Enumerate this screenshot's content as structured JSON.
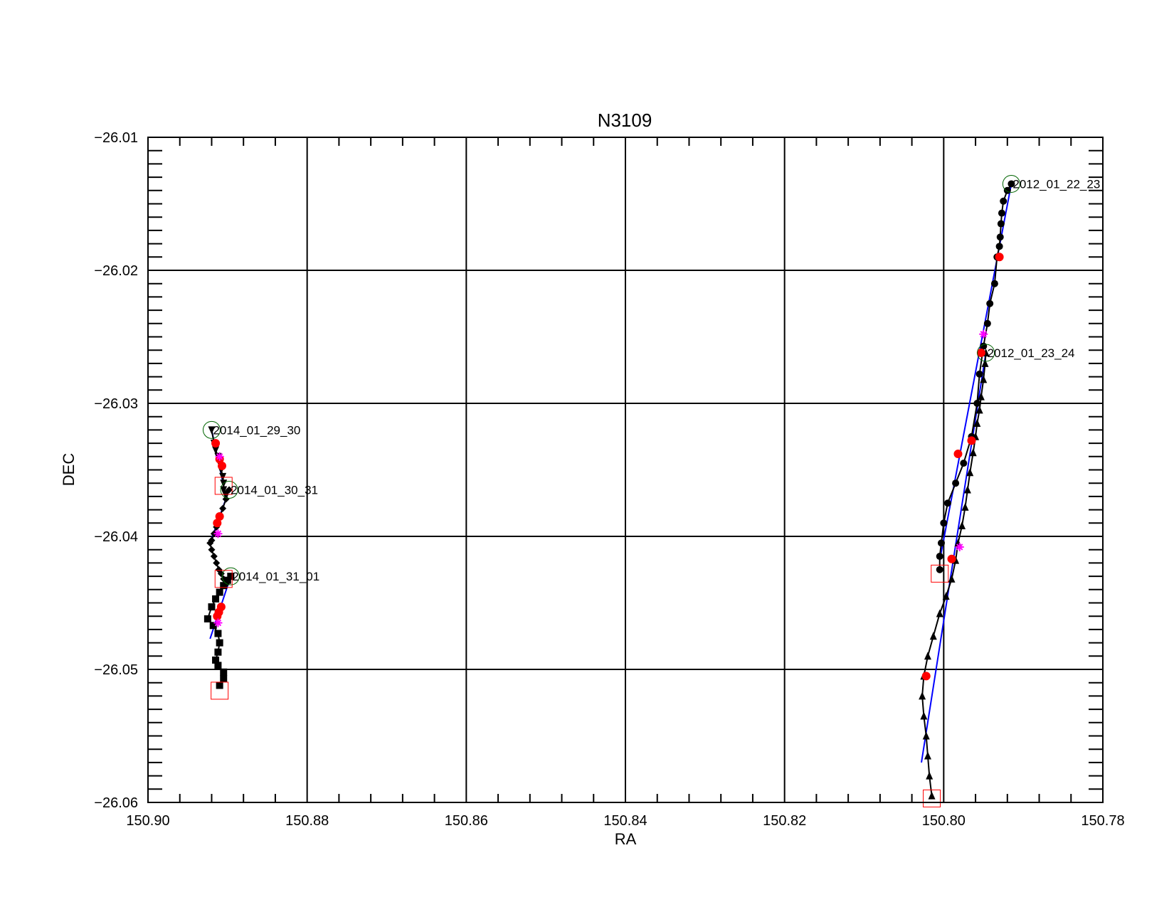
{
  "chart_data": {
    "type": "scatter",
    "title": "N3109",
    "xlabel": "RA",
    "ylabel": "DEC",
    "xlim": [
      150.9,
      150.78
    ],
    "ylim": [
      -26.06,
      -26.01
    ],
    "x_reversed": true,
    "grid": true,
    "x_ticks": [
      "150.90",
      "150.88",
      "150.86",
      "150.84",
      "150.82",
      "150.80",
      "150.78"
    ],
    "y_ticks": [
      "-26.01",
      "-26.02",
      "-26.03",
      "-26.04",
      "-26.05",
      "-26.06"
    ],
    "colors": {
      "points": "#000000",
      "fit": "#0000ff",
      "marked": "#ff0000",
      "star": "#ff00ff",
      "start": "#006400",
      "end": "#ff0000"
    },
    "series": [
      {
        "name": "2012_01_22_23",
        "marker": "circle",
        "x": [
          150.7915,
          150.792,
          150.7925,
          150.7927,
          150.7928,
          150.7929,
          150.793,
          150.7933,
          150.7936,
          150.7942,
          150.7945,
          150.795,
          150.7955,
          150.7958,
          150.7965,
          150.7975,
          150.7985,
          150.7995,
          150.8,
          150.8003,
          150.8005,
          150.8005
        ],
        "y": [
          -26.0135,
          -26.014,
          -26.0148,
          -26.0157,
          -26.0165,
          -26.0175,
          -26.0182,
          -26.019,
          -26.021,
          -26.0225,
          -26.024,
          -26.0257,
          -26.0278,
          -26.03,
          -26.0325,
          -26.0345,
          -26.036,
          -26.0375,
          -26.039,
          -26.0405,
          -26.0415,
          -26.0425
        ],
        "marked_x": [
          150.793,
          150.7953,
          150.7982
        ],
        "marked_y": [
          -26.019,
          -26.0262,
          -26.0338
        ],
        "star": [
          [
            150.795,
            -26.0248
          ]
        ],
        "fit": [
          [
            150.7915,
            -26.0135
          ],
          [
            150.8005,
            -26.0418
          ]
        ]
      },
      {
        "name": "2012_01_23_24",
        "marker": "triangle",
        "x": [
          150.7947,
          150.7948,
          150.795,
          150.7953,
          150.7955,
          150.7958,
          150.796,
          150.7963,
          150.7967,
          150.797,
          150.7973,
          150.7977,
          150.7982,
          150.7985,
          150.799,
          150.7997,
          150.8005,
          150.8013,
          150.802,
          150.8025,
          150.8027,
          150.8025,
          150.8022,
          150.802,
          150.8018,
          150.8015
        ],
        "y": [
          -26.0262,
          -26.027,
          -26.0282,
          -26.0295,
          -26.0305,
          -26.0315,
          -26.0325,
          -26.0337,
          -26.0352,
          -26.0365,
          -26.0378,
          -26.0392,
          -26.0405,
          -26.0418,
          -26.0432,
          -26.0445,
          -26.0458,
          -26.0475,
          -26.049,
          -26.0505,
          -26.052,
          -26.0535,
          -26.055,
          -26.0565,
          -26.058,
          -26.0595
        ],
        "marked_x": [
          150.7965,
          150.799,
          150.8022
        ],
        "marked_y": [
          -26.0328,
          -26.0417,
          -26.0505
        ],
        "star": [
          [
            150.798,
            -26.0408
          ]
        ],
        "fit": [
          [
            150.7947,
            -26.0262
          ],
          [
            150.8028,
            -26.057
          ]
        ]
      },
      {
        "name": "2014_01_29_30",
        "marker": "triangle-down",
        "x": [
          150.892,
          150.8917,
          150.8915,
          150.8912,
          150.891,
          150.8908,
          150.8906,
          150.8905,
          150.8905,
          150.8903
        ],
        "y": [
          -26.032,
          -26.033,
          -26.0335,
          -26.034,
          -26.0345,
          -26.035,
          -26.0355,
          -26.036,
          -26.0365,
          -26.0368
        ],
        "marked_x": [
          150.8915,
          150.891,
          150.8907
        ],
        "marked_y": [
          -26.033,
          -26.0342,
          -26.0347
        ],
        "star": [
          [
            150.891,
            -26.034
          ]
        ],
        "fit": [
          [
            150.892,
            -26.032
          ],
          [
            150.8905,
            -26.0362
          ]
        ]
      },
      {
        "name": "2014_01_30_31",
        "marker": "diamond",
        "x": [
          150.8898,
          150.8902,
          150.8906,
          150.891,
          150.8914,
          150.8917,
          150.892,
          150.8922,
          150.892,
          150.8917,
          150.8914,
          150.8911,
          150.8908,
          150.8905,
          150.8902
        ],
        "y": [
          -26.0365,
          -26.0372,
          -26.0379,
          -26.0386,
          -26.0393,
          -26.0398,
          -26.0403,
          -26.0405,
          -26.041,
          -26.0415,
          -26.042,
          -26.0425,
          -26.0428,
          -26.0432,
          -26.0436
        ],
        "marked_x": [
          150.891,
          150.8913
        ],
        "marked_y": [
          -26.0385,
          -26.039
        ],
        "star": [
          [
            150.8912,
            -26.0398
          ]
        ],
        "fit": [
          [
            150.8898,
            -26.0365
          ],
          [
            150.8922,
            -26.0405
          ]
        ]
      },
      {
        "name": "2014_01_31_01",
        "marker": "square",
        "x": [
          150.8896,
          150.89,
          150.8905,
          150.891,
          150.8915,
          150.892,
          150.8925,
          150.8918,
          150.8912,
          150.891,
          150.8912,
          150.8915,
          150.8912,
          150.8905,
          150.8905,
          150.891
        ],
        "y": [
          -26.043,
          -26.0433,
          -26.0437,
          -26.0442,
          -26.0447,
          -26.0453,
          -26.0462,
          -26.0467,
          -26.0473,
          -26.048,
          -26.0487,
          -26.0493,
          -26.0497,
          -26.0502,
          -26.0507,
          -26.0512
        ],
        "marked_x": [
          150.8908,
          150.8911,
          150.8913
        ],
        "marked_y": [
          -26.0453,
          -26.0457,
          -26.046
        ],
        "star": [
          [
            150.8912,
            -26.0465
          ]
        ],
        "fit": [
          [
            150.8896,
            -26.043
          ],
          [
            150.8922,
            -26.0477
          ]
        ]
      }
    ],
    "track_labels": [
      {
        "text": "2012_01_22_23",
        "x": 150.7915,
        "y": -26.0135
      },
      {
        "text": "2012_01_23_24",
        "x": 150.7947,
        "y": -26.0262
      },
      {
        "text": "2014_01_29_30",
        "x": 150.892,
        "y": -26.032
      },
      {
        "text": "2014_01_30_31",
        "x": 150.8898,
        "y": -26.0365
      },
      {
        "text": "2014_01_31_01",
        "x": 150.8896,
        "y": -26.043
      }
    ],
    "start_markers": [
      [
        150.7915,
        -26.0135
      ],
      [
        150.7947,
        -26.0262
      ],
      [
        150.892,
        -26.032
      ],
      [
        150.8898,
        -26.0365
      ],
      [
        150.8896,
        -26.043
      ]
    ],
    "end_markers": [
      [
        150.8005,
        -26.0428
      ],
      [
        150.8015,
        -26.0597
      ],
      [
        150.8905,
        -26.0362
      ],
      [
        150.8905,
        -26.0432
      ],
      [
        150.891,
        -26.0516
      ]
    ]
  }
}
